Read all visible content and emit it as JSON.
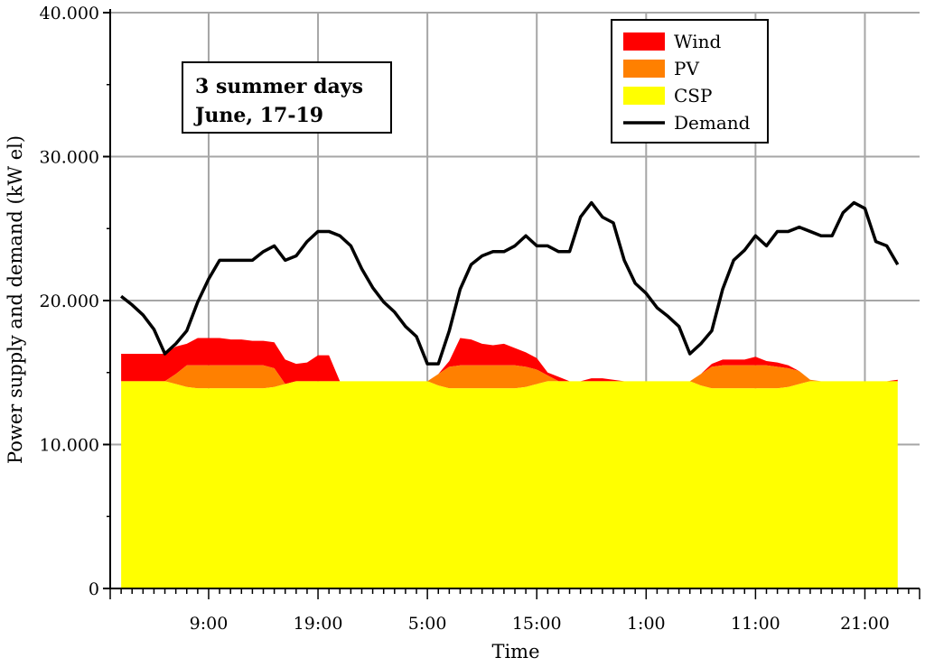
{
  "chart_data": {
    "type": "area",
    "title": "",
    "annotation": [
      "3 summer days",
      "June, 17-19"
    ],
    "xlabel": "Time",
    "ylabel": "Power supply and demand (kW el)",
    "ylim": [
      0,
      40000
    ],
    "y_ticks": [
      0,
      10000,
      20000,
      30000,
      40000
    ],
    "y_tick_labels": [
      "0",
      "10.000",
      "20.000",
      "30.000",
      "40.000"
    ],
    "x_range_hours": [
      0,
      74
    ],
    "x_ticks": [
      {
        "hour": 9,
        "label": "9:00"
      },
      {
        "hour": 19,
        "label": "19:00"
      },
      {
        "hour": 29,
        "label": "5:00"
      },
      {
        "hour": 39,
        "label": "15:00"
      },
      {
        "hour": 49,
        "label": "1:00"
      },
      {
        "hour": 59,
        "label": "11:00"
      },
      {
        "hour": 69,
        "label": "21:00"
      }
    ],
    "grid": true,
    "legend_position": "top-right",
    "colors": {
      "Wind": "#ff0000",
      "PV": "#ff8000",
      "CSP": "#ffff00",
      "Demand": "#000000"
    },
    "x": [
      1,
      2,
      3,
      4,
      5,
      6,
      7,
      8,
      9,
      10,
      11,
      12,
      13,
      14,
      15,
      16,
      17,
      18,
      19,
      20,
      21,
      22,
      23,
      24,
      25,
      26,
      27,
      28,
      29,
      30,
      31,
      32,
      33,
      34,
      35,
      36,
      37,
      38,
      39,
      40,
      41,
      42,
      43,
      44,
      45,
      46,
      47,
      48,
      49,
      50,
      51,
      52,
      53,
      54,
      55,
      56,
      57,
      58,
      59,
      60,
      61,
      62,
      63,
      64,
      65,
      66,
      67,
      68,
      69,
      70,
      71,
      72
    ],
    "series": [
      {
        "name": "CSP",
        "kind": "area",
        "values": [
          14400,
          14400,
          14400,
          14400,
          14400,
          14200,
          14000,
          13900,
          13900,
          13900,
          13900,
          13900,
          13900,
          13900,
          14000,
          14200,
          14400,
          14400,
          14400,
          14400,
          14400,
          14400,
          14400,
          14400,
          14400,
          14400,
          14400,
          14400,
          14400,
          14100,
          13900,
          13900,
          13900,
          13900,
          13900,
          13900,
          13900,
          14000,
          14200,
          14400,
          14400,
          14400,
          14400,
          14400,
          14400,
          14400,
          14400,
          14400,
          14400,
          14400,
          14400,
          14400,
          14400,
          14100,
          13900,
          13900,
          13900,
          13900,
          13900,
          13900,
          13900,
          14000,
          14200,
          14400,
          14400,
          14400,
          14400,
          14400,
          14400,
          14400,
          14400,
          14400
        ]
      },
      {
        "name": "PV",
        "kind": "area",
        "values": [
          0,
          0,
          0,
          0,
          0,
          700,
          1500,
          1600,
          1600,
          1600,
          1600,
          1600,
          1600,
          1600,
          1300,
          0,
          0,
          0,
          0,
          0,
          0,
          0,
          0,
          0,
          0,
          0,
          0,
          0,
          0,
          800,
          1500,
          1600,
          1600,
          1600,
          1600,
          1600,
          1600,
          1400,
          1000,
          400,
          0,
          0,
          0,
          0,
          0,
          0,
          0,
          0,
          0,
          0,
          0,
          0,
          0,
          800,
          1500,
          1600,
          1600,
          1600,
          1600,
          1600,
          1500,
          1300,
          900,
          100,
          0,
          0,
          0,
          0,
          0,
          0,
          0,
          0
        ]
      },
      {
        "name": "Wind",
        "kind": "area",
        "values": [
          1900,
          1900,
          1900,
          1900,
          1900,
          1900,
          1500,
          1900,
          1900,
          1900,
          1800,
          1800,
          1700,
          1700,
          1800,
          1700,
          1200,
          1300,
          1800,
          1800,
          0,
          0,
          0,
          0,
          0,
          0,
          0,
          0,
          0,
          0,
          400,
          1900,
          1800,
          1500,
          1400,
          1500,
          1200,
          1000,
          800,
          200,
          300,
          0,
          0,
          200,
          200,
          100,
          0,
          0,
          0,
          0,
          0,
          0,
          0,
          0,
          200,
          400,
          400,
          400,
          600,
          300,
          300,
          200,
          0,
          0,
          0,
          0,
          0,
          0,
          0,
          0,
          0,
          100
        ]
      },
      {
        "name": "Demand",
        "kind": "line",
        "values": [
          20300,
          19700,
          19000,
          18000,
          16300,
          17000,
          17900,
          19900,
          21500,
          22800,
          22800,
          22800,
          22800,
          23400,
          23800,
          22800,
          23100,
          24100,
          24800,
          24800,
          24500,
          23800,
          22200,
          20900,
          19900,
          19200,
          18200,
          17500,
          15600,
          15600,
          17900,
          20800,
          22500,
          23100,
          23400,
          23400,
          23800,
          24500,
          23800,
          23800,
          23400,
          23400,
          25800,
          26800,
          25800,
          25400,
          22800,
          21200,
          20500,
          19500,
          18900,
          18200,
          16300,
          17000,
          17900,
          20800,
          22800,
          23500,
          24500,
          23800,
          24800,
          24800,
          25100,
          24800,
          24500,
          24500,
          26100,
          26800,
          26400,
          24100,
          23800,
          22500
        ]
      }
    ]
  },
  "legend": [
    {
      "label": "Wind",
      "swatch": "#ff0000",
      "kind": "box"
    },
    {
      "label": "PV",
      "swatch": "#ff8000",
      "kind": "box"
    },
    {
      "label": "CSP",
      "swatch": "#ffff00",
      "kind": "box"
    },
    {
      "label": "Demand",
      "swatch": "#000000",
      "kind": "line"
    }
  ]
}
